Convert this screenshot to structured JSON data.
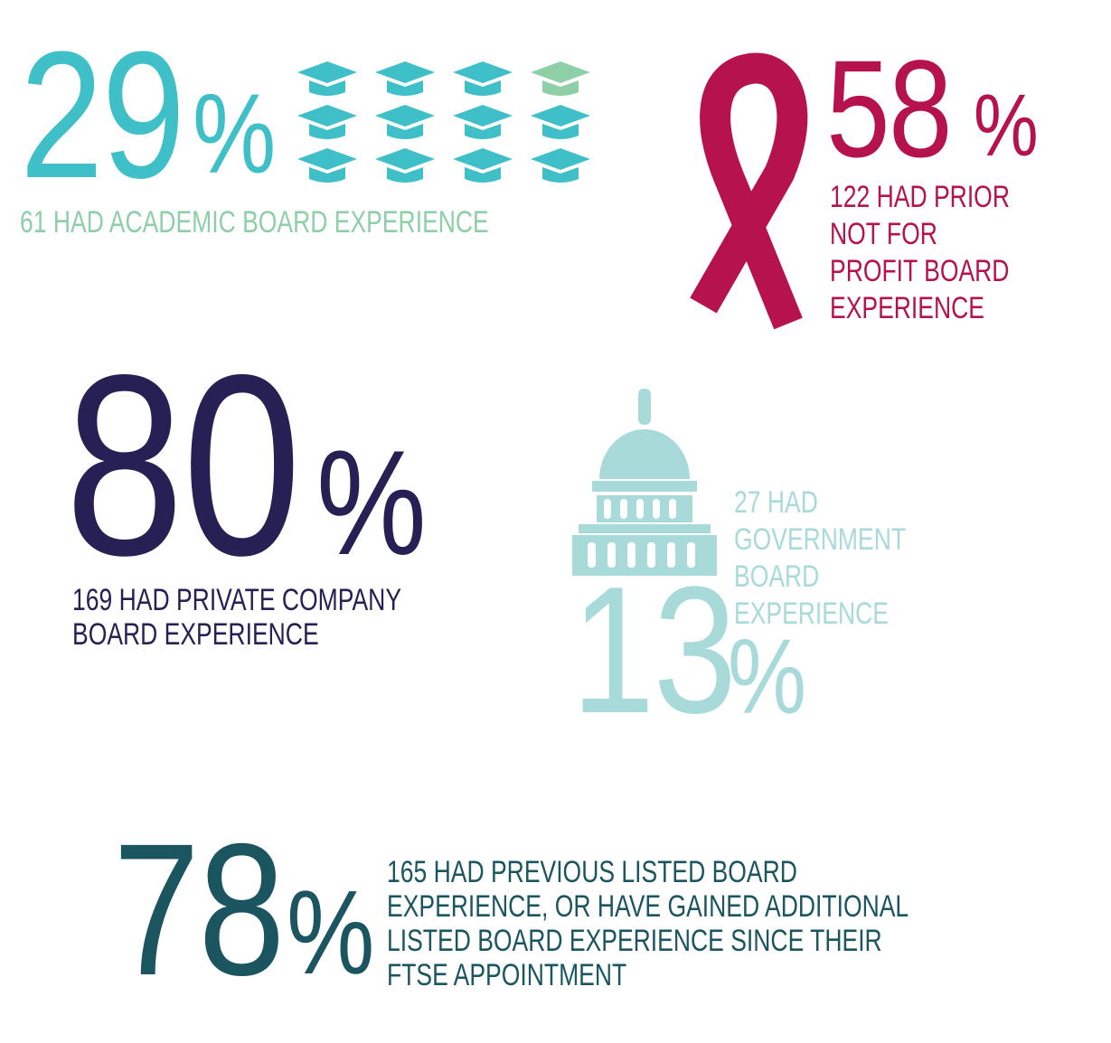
{
  "stats": [
    {
      "number": "29",
      "unit": "%",
      "lines": [
        "61 HAD ACADEMIC BOARD EXPERIENCE"
      ]
    },
    {
      "number": "58",
      "unit": "%",
      "lines": [
        "122 HAD PRIOR",
        "NOT FOR",
        "PROFIT BOARD",
        "EXPERIENCE"
      ]
    },
    {
      "number": "80",
      "unit": "%",
      "lines": [
        "169 HAD PRIVATE COMPANY",
        "BOARD EXPERIENCE"
      ]
    },
    {
      "number": "13",
      "unit": "%",
      "lines": [
        "27 HAD",
        "GOVERNMENT",
        "BOARD",
        "EXPERIENCE"
      ]
    },
    {
      "number": "78",
      "unit": "%",
      "lines": [
        "165 HAD PREVIOUS LISTED BOARD",
        "EXPERIENCE, OR HAVE GAINED ADDITIONAL",
        "LISTED BOARD EXPERIENCE SINCE THEIR",
        "FTSE APPOINTMENT"
      ]
    }
  ]
}
